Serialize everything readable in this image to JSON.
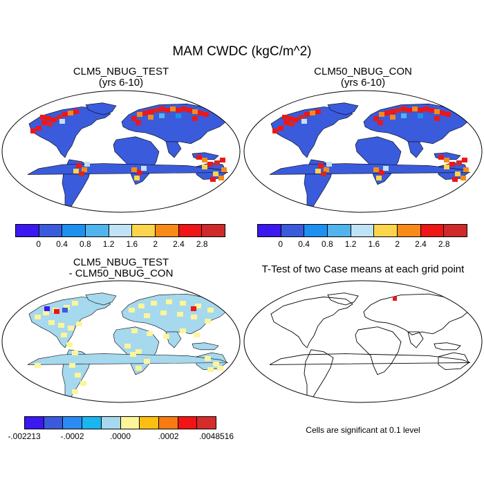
{
  "figure": {
    "title": "MAM CWDC (kgC/m^2)"
  },
  "panels": {
    "test": {
      "title_line1": "CLM5_NBUG_TEST",
      "title_line2": "(yrs 6-10)"
    },
    "control": {
      "title_line1": "CLM50_NBUG_CON",
      "title_line2": "(yrs 6-10)"
    },
    "difference": {
      "title_line1": "CLM5_NBUG_TEST",
      "title_line2": "- CLM50_NBUG_CON"
    },
    "ttest": {
      "title": "T-Test of two Case means at each grid point",
      "note": "Cells are significant at 0.1 level"
    }
  },
  "colorbar_main": {
    "colors": [
      "#3b17f0",
      "#3a5bdc",
      "#1e90f0",
      "#52b4ec",
      "#bfe3f5",
      "#fcd54c",
      "#f88b17",
      "#ee1616",
      "#cf2a2a"
    ],
    "labels": [
      "0",
      "0.4",
      "0.8",
      "1.2",
      "1.6",
      "2",
      "2.4",
      "2.8"
    ]
  },
  "colorbar_diff": {
    "colors": [
      "#3b17f0",
      "#3a5bdc",
      "#2b8bf2",
      "#1ab6f0",
      "#a6d8ee",
      "#fdf59a",
      "#fbbf12",
      "#f77a12",
      "#f21414",
      "#d62b2b"
    ],
    "labels": [
      "-.002213",
      "-.0002",
      ".0000",
      ".0002",
      ".0048516"
    ]
  },
  "map_colors": {
    "ocean": "#ffffff",
    "land_main": "#3a5bdc",
    "land_diff": "#a6d8ee",
    "diff_pos": "#fdf59a",
    "coast": "#000000"
  }
}
